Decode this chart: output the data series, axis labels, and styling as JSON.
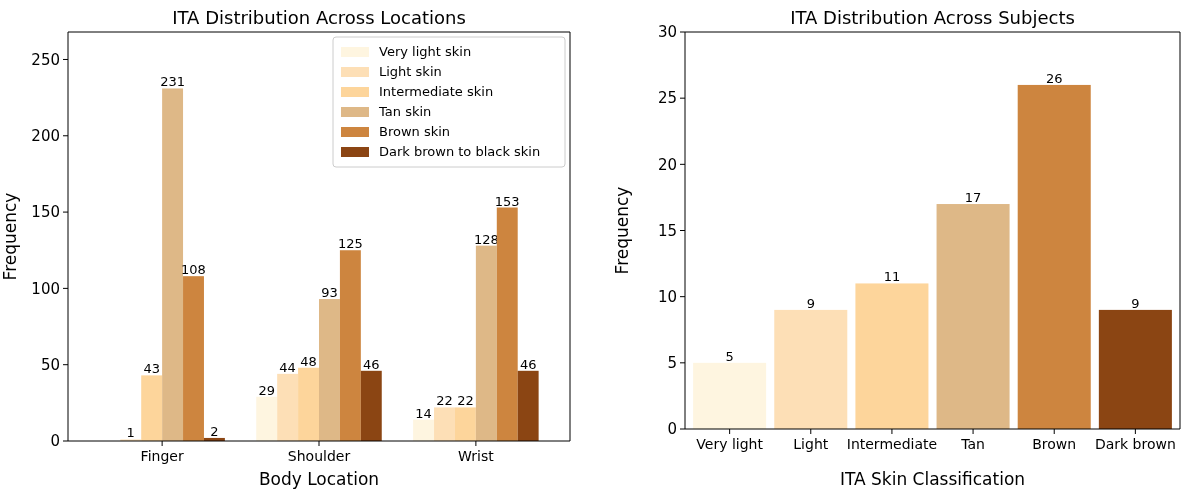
{
  "chart_data": [
    {
      "type": "bar",
      "title": "ITA Distribution Across Locations",
      "xlabel": "Body Location",
      "ylabel": "Frequency",
      "categories": [
        "Finger",
        "Shoulder",
        "Wrist"
      ],
      "ylim": [
        0,
        268
      ],
      "yticks": [
        0,
        50,
        100,
        150,
        200,
        250
      ],
      "grid": false,
      "legend": "top right",
      "data_labels": true,
      "series": [
        {
          "name": "Very light skin",
          "color": "#fef5e0",
          "values": [
            null,
            29,
            14
          ]
        },
        {
          "name": "Light skin",
          "color": "#fddfb6",
          "values": [
            1,
            44,
            22
          ]
        },
        {
          "name": "Intermediate skin",
          "color": "#fdd59b",
          "values": [
            43,
            48,
            22
          ]
        },
        {
          "name": "Tan skin",
          "color": "#deb887",
          "values": [
            231,
            93,
            128
          ]
        },
        {
          "name": "Brown skin",
          "color": "#cd853f",
          "values": [
            108,
            125,
            153
          ]
        },
        {
          "name": "Dark brown to black skin",
          "color": "#8b4513",
          "values": [
            2,
            46,
            46
          ]
        }
      ]
    },
    {
      "type": "bar",
      "title": "ITA Distribution Across Subjects",
      "xlabel": "ITA Skin Classification",
      "ylabel": "Frequency",
      "categories": [
        "Very light",
        "Light",
        "Intermediate",
        "Tan",
        "Brown",
        "Dark brown"
      ],
      "values": [
        5,
        9,
        11,
        17,
        26,
        9
      ],
      "colors": [
        "#fef5e0",
        "#fddfb6",
        "#fdd59b",
        "#deb887",
        "#cd853f",
        "#8b4513"
      ],
      "ylim": [
        0,
        30
      ],
      "yticks": [
        0,
        5,
        10,
        15,
        20,
        25,
        30
      ],
      "grid": false,
      "data_labels": true
    }
  ]
}
